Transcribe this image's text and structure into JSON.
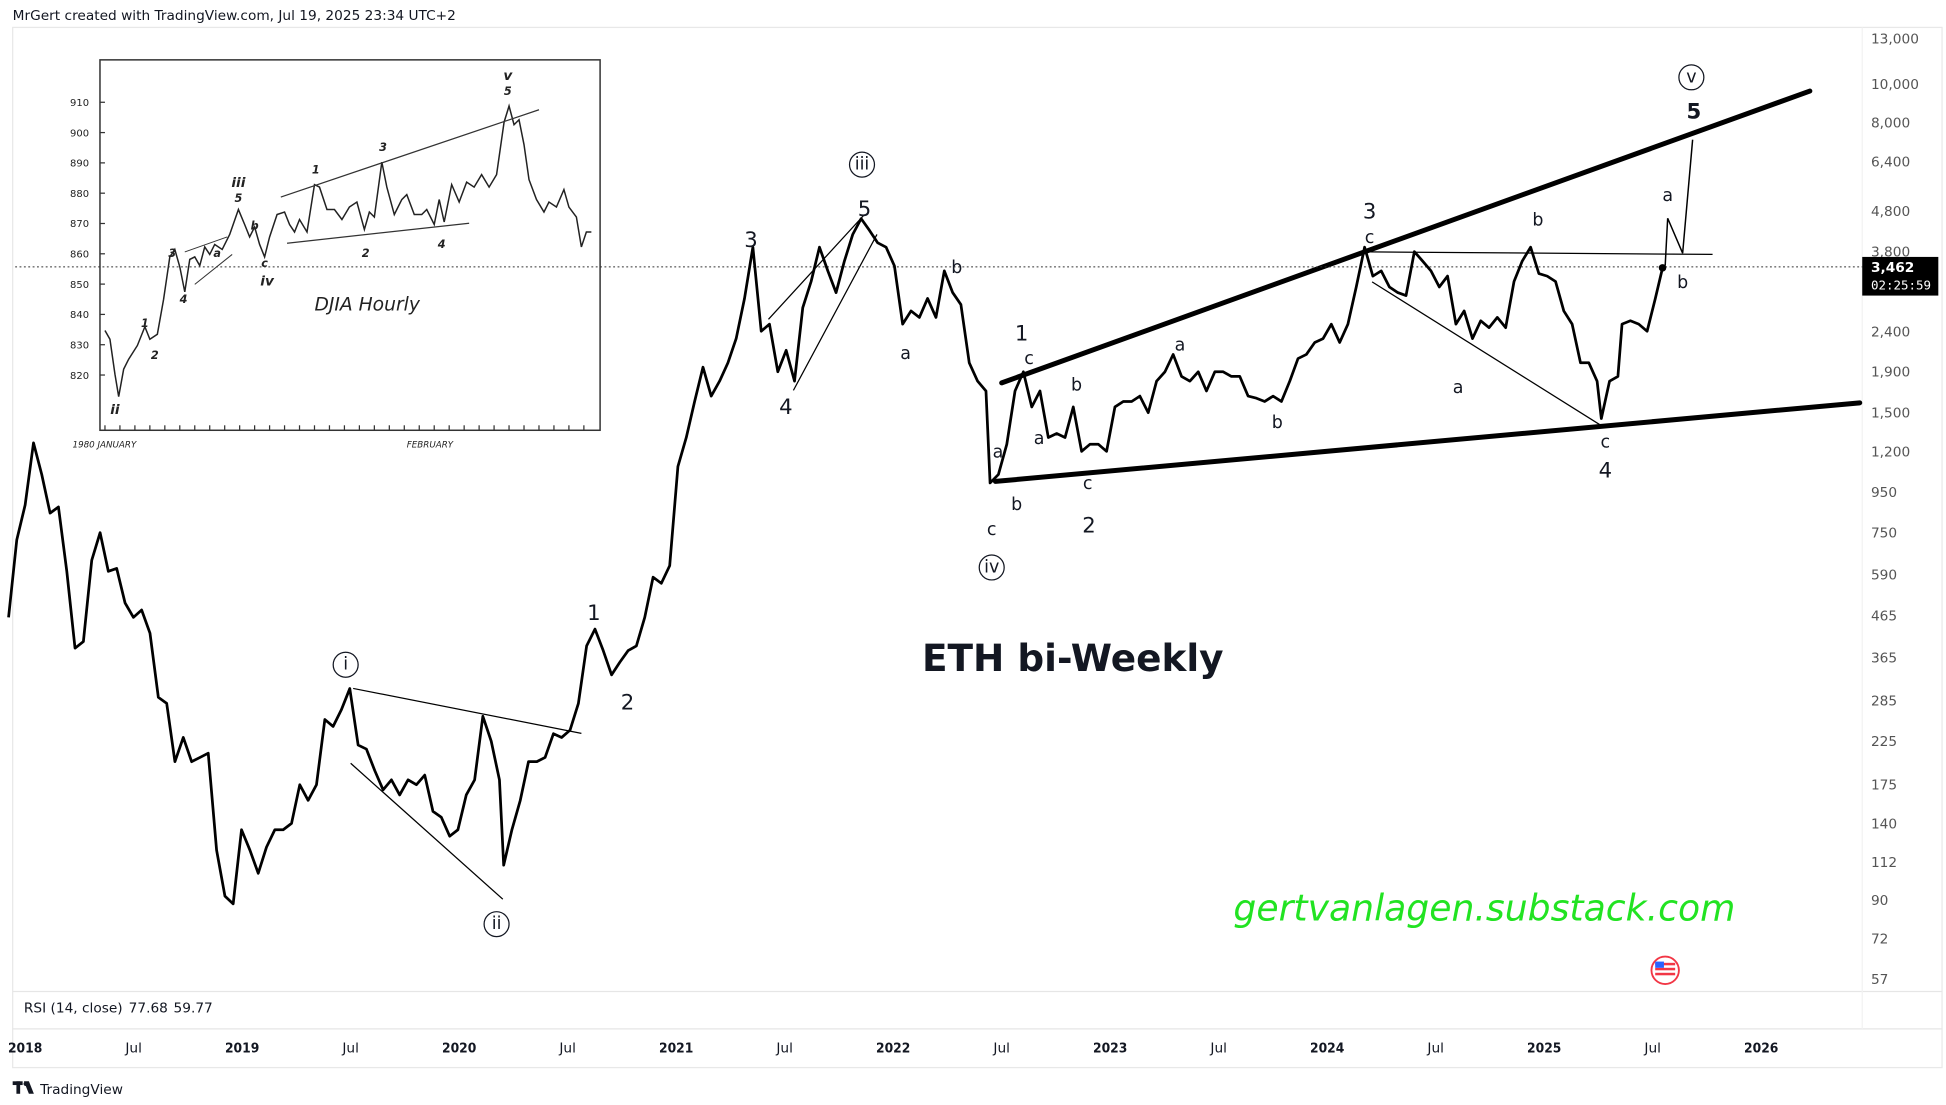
{
  "header": {
    "attribution": "MrGert created with TradingView.com, Jul 19, 2025 23:34 UTC+2"
  },
  "footer": {
    "brand": "TradingView",
    "logo": "tradingview-logo-icon"
  },
  "rsi": {
    "label": "RSI (14, close)",
    "value1": "77.68",
    "value2": "59.77",
    "color1": "#7e57c2",
    "color2": "#f5c400"
  },
  "price_badge": {
    "price": "3,462",
    "countdown": "02:25:59"
  },
  "watermark": {
    "title": "ETH bi-Weekly",
    "url": "gertvanlagen.substack.com",
    "url_color": "#22e322"
  },
  "flag_icon": "us-flag-icon",
  "inset": {
    "title": "DJIA Hourly",
    "y_ticks": [
      "910",
      "900",
      "890",
      "880",
      "870",
      "860",
      "850",
      "840",
      "830",
      "820"
    ],
    "x_labels": [
      "1980 JANUARY",
      "FEBRUARY"
    ],
    "labels": [
      "ii",
      "1",
      "2",
      "3",
      "4",
      "iii",
      "5",
      "a",
      "b",
      "c",
      "iv",
      "1",
      "3",
      "2",
      "4",
      "5",
      "v"
    ]
  },
  "chart_data": {
    "type": "line",
    "title": "ETH bi-Weekly",
    "y_scale": "log",
    "ylim": [
      57,
      13000
    ],
    "xlim": [
      "2017-12-01",
      "2026-06-30"
    ],
    "grid": false,
    "y_ticks": [
      "13,000",
      "10,000",
      "8,000",
      "6,400",
      "4,800",
      "3,800",
      "2,400",
      "1,900",
      "1,500",
      "1,200",
      "950",
      "750",
      "590",
      "465",
      "365",
      "285",
      "225",
      "175",
      "140",
      "112",
      "90",
      "72",
      "57"
    ],
    "x_ticks": [
      "2018",
      "Jul",
      "2019",
      "Jul",
      "2020",
      "Jul",
      "2021",
      "Jul",
      "2022",
      "Jul",
      "2023",
      "Jul",
      "2024",
      "Jul",
      "2025",
      "Jul",
      "2026"
    ],
    "last_price": 3462,
    "annotations": [
      "i",
      "ii",
      "iii",
      "iv",
      "v",
      "1",
      "2",
      "3",
      "4",
      "5",
      "b",
      "a",
      "1",
      "c",
      "b",
      "a",
      "a",
      "b",
      "c",
      "2",
      "c",
      "a",
      "b",
      "3",
      "c",
      "a",
      "b",
      "c",
      "4",
      "a",
      "b",
      "5"
    ],
    "series": [
      {
        "values": [
          [
            "2017-12-04",
            460
          ],
          [
            "2017-12-18",
            720
          ],
          [
            "2018-01-01",
            880
          ],
          [
            "2018-01-15",
            1260
          ],
          [
            "2018-01-29",
            1050
          ],
          [
            "2018-02-12",
            840
          ],
          [
            "2018-02-26",
            870
          ],
          [
            "2018-03-12",
            600
          ],
          [
            "2018-03-26",
            385
          ],
          [
            "2018-04-09",
            400
          ],
          [
            "2018-04-23",
            640
          ],
          [
            "2018-05-07",
            750
          ],
          [
            "2018-05-21",
            600
          ],
          [
            "2018-06-04",
            610
          ],
          [
            "2018-06-18",
            500
          ],
          [
            "2018-07-02",
            460
          ],
          [
            "2018-07-16",
            480
          ],
          [
            "2018-07-30",
            420
          ],
          [
            "2018-08-13",
            290
          ],
          [
            "2018-08-27",
            280
          ],
          [
            "2018-09-10",
            200
          ],
          [
            "2018-09-24",
            230
          ],
          [
            "2018-10-08",
            200
          ],
          [
            "2018-10-22",
            205
          ],
          [
            "2018-11-05",
            210
          ],
          [
            "2018-11-19",
            120
          ],
          [
            "2018-12-03",
            92
          ],
          [
            "2018-12-17",
            88
          ],
          [
            "2018-12-31",
            135
          ],
          [
            "2019-01-14",
            120
          ],
          [
            "2019-01-28",
            105
          ],
          [
            "2019-02-11",
            122
          ],
          [
            "2019-02-25",
            135
          ],
          [
            "2019-03-11",
            135
          ],
          [
            "2019-03-25",
            140
          ],
          [
            "2019-04-08",
            175
          ],
          [
            "2019-04-22",
            160
          ],
          [
            "2019-05-06",
            175
          ],
          [
            "2019-05-20",
            255
          ],
          [
            "2019-06-03",
            245
          ],
          [
            "2019-06-17",
            270
          ],
          [
            "2019-07-01",
            305
          ],
          [
            "2019-07-15",
            220
          ],
          [
            "2019-07-29",
            215
          ],
          [
            "2019-08-12",
            190
          ],
          [
            "2019-08-26",
            170
          ],
          [
            "2019-09-09",
            180
          ],
          [
            "2019-09-23",
            165
          ],
          [
            "2019-10-07",
            180
          ],
          [
            "2019-10-21",
            175
          ],
          [
            "2019-11-04",
            185
          ],
          [
            "2019-11-18",
            150
          ],
          [
            "2019-12-02",
            145
          ],
          [
            "2019-12-16",
            130
          ],
          [
            "2019-12-30",
            135
          ],
          [
            "2020-01-13",
            165
          ],
          [
            "2020-01-27",
            180
          ],
          [
            "2020-02-10",
            260
          ],
          [
            "2020-02-24",
            225
          ],
          [
            "2020-03-09",
            180
          ],
          [
            "2020-03-16",
            110
          ],
          [
            "2020-03-30",
            135
          ],
          [
            "2020-04-13",
            160
          ],
          [
            "2020-04-27",
            200
          ],
          [
            "2020-05-11",
            200
          ],
          [
            "2020-05-25",
            205
          ],
          [
            "2020-06-08",
            235
          ],
          [
            "2020-06-22",
            230
          ],
          [
            "2020-07-06",
            240
          ],
          [
            "2020-07-20",
            280
          ],
          [
            "2020-08-03",
            390
          ],
          [
            "2020-08-17",
            430
          ],
          [
            "2020-08-31",
            380
          ],
          [
            "2020-09-14",
            330
          ],
          [
            "2020-09-28",
            355
          ],
          [
            "2020-10-12",
            380
          ],
          [
            "2020-10-26",
            390
          ],
          [
            "2020-11-09",
            460
          ],
          [
            "2020-11-23",
            580
          ],
          [
            "2020-12-07",
            560
          ],
          [
            "2020-12-21",
            620
          ],
          [
            "2021-01-04",
            1100
          ],
          [
            "2021-01-18",
            1300
          ],
          [
            "2021-02-01",
            1600
          ],
          [
            "2021-02-15",
            1950
          ],
          [
            "2021-03-01",
            1650
          ],
          [
            "2021-03-15",
            1800
          ],
          [
            "2021-03-29",
            2000
          ],
          [
            "2021-04-12",
            2300
          ],
          [
            "2021-04-26",
            2900
          ],
          [
            "2021-05-10",
            3900
          ],
          [
            "2021-05-24",
            2400
          ],
          [
            "2021-06-07",
            2500
          ],
          [
            "2021-06-21",
            1900
          ],
          [
            "2021-07-05",
            2150
          ],
          [
            "2021-07-19",
            1800
          ],
          [
            "2021-08-02",
            2750
          ],
          [
            "2021-08-16",
            3200
          ],
          [
            "2021-08-30",
            3900
          ],
          [
            "2021-09-13",
            3400
          ],
          [
            "2021-09-27",
            3000
          ],
          [
            "2021-10-11",
            3600
          ],
          [
            "2021-10-25",
            4200
          ],
          [
            "2021-11-08",
            4600
          ],
          [
            "2021-11-22",
            4300
          ],
          [
            "2021-12-06",
            4000
          ],
          [
            "2021-12-20",
            3900
          ],
          [
            "2022-01-03",
            3500
          ],
          [
            "2022-01-17",
            2500
          ],
          [
            "2022-01-31",
            2700
          ],
          [
            "2022-02-14",
            2600
          ],
          [
            "2022-02-28",
            2900
          ],
          [
            "2022-03-14",
            2600
          ],
          [
            "2022-03-28",
            3400
          ],
          [
            "2022-04-11",
            3000
          ],
          [
            "2022-04-25",
            2800
          ],
          [
            "2022-05-09",
            2000
          ],
          [
            "2022-05-23",
            1800
          ],
          [
            "2022-06-06",
            1700
          ],
          [
            "2022-06-13",
            1000
          ],
          [
            "2022-06-27",
            1050
          ],
          [
            "2022-07-11",
            1250
          ],
          [
            "2022-07-25",
            1700
          ],
          [
            "2022-08-08",
            1900
          ],
          [
            "2022-08-22",
            1550
          ],
          [
            "2022-09-05",
            1700
          ],
          [
            "2022-09-19",
            1300
          ],
          [
            "2022-10-03",
            1330
          ],
          [
            "2022-10-17",
            1300
          ],
          [
            "2022-10-31",
            1550
          ],
          [
            "2022-11-14",
            1200
          ],
          [
            "2022-11-28",
            1250
          ],
          [
            "2022-12-12",
            1250
          ],
          [
            "2022-12-26",
            1200
          ],
          [
            "2023-01-09",
            1550
          ],
          [
            "2023-01-23",
            1600
          ],
          [
            "2023-02-06",
            1600
          ],
          [
            "2023-02-20",
            1650
          ],
          [
            "2023-03-06",
            1500
          ],
          [
            "2023-03-20",
            1800
          ],
          [
            "2023-04-03",
            1900
          ],
          [
            "2023-04-17",
            2100
          ],
          [
            "2023-05-01",
            1850
          ],
          [
            "2023-05-15",
            1800
          ],
          [
            "2023-05-29",
            1900
          ],
          [
            "2023-06-12",
            1700
          ],
          [
            "2023-06-26",
            1900
          ],
          [
            "2023-07-10",
            1900
          ],
          [
            "2023-07-24",
            1850
          ],
          [
            "2023-08-07",
            1850
          ],
          [
            "2023-08-21",
            1650
          ],
          [
            "2023-09-04",
            1630
          ],
          [
            "2023-09-18",
            1600
          ],
          [
            "2023-10-02",
            1650
          ],
          [
            "2023-10-16",
            1600
          ],
          [
            "2023-10-30",
            1800
          ],
          [
            "2023-11-13",
            2050
          ],
          [
            "2023-11-27",
            2100
          ],
          [
            "2023-12-11",
            2250
          ],
          [
            "2023-12-25",
            2300
          ],
          [
            "2024-01-08",
            2500
          ],
          [
            "2024-01-22",
            2250
          ],
          [
            "2024-02-05",
            2500
          ],
          [
            "2024-02-19",
            3100
          ],
          [
            "2024-03-04",
            3900
          ],
          [
            "2024-03-18",
            3300
          ],
          [
            "2024-04-01",
            3400
          ],
          [
            "2024-04-15",
            3100
          ],
          [
            "2024-04-29",
            3000
          ],
          [
            "2024-05-13",
            2950
          ],
          [
            "2024-05-27",
            3800
          ],
          [
            "2024-06-10",
            3600
          ],
          [
            "2024-06-24",
            3400
          ],
          [
            "2024-07-08",
            3100
          ],
          [
            "2024-07-22",
            3300
          ],
          [
            "2024-08-05",
            2500
          ],
          [
            "2024-08-19",
            2700
          ],
          [
            "2024-09-02",
            2300
          ],
          [
            "2024-09-16",
            2550
          ],
          [
            "2024-09-30",
            2450
          ],
          [
            "2024-10-14",
            2600
          ],
          [
            "2024-10-28",
            2450
          ],
          [
            "2024-11-11",
            3200
          ],
          [
            "2024-11-25",
            3600
          ],
          [
            "2024-12-09",
            3900
          ],
          [
            "2024-12-23",
            3350
          ],
          [
            "2025-01-06",
            3300
          ],
          [
            "2025-01-20",
            3200
          ],
          [
            "2025-02-03",
            2700
          ],
          [
            "2025-02-17",
            2500
          ],
          [
            "2025-03-03",
            2000
          ],
          [
            "2025-03-17",
            2000
          ],
          [
            "2025-03-31",
            1800
          ],
          [
            "2025-04-07",
            1450
          ],
          [
            "2025-04-21",
            1800
          ],
          [
            "2025-05-05",
            1850
          ],
          [
            "2025-05-12",
            2500
          ],
          [
            "2025-05-26",
            2550
          ],
          [
            "2025-06-09",
            2500
          ],
          [
            "2025-06-23",
            2400
          ],
          [
            "2025-07-07",
            2900
          ],
          [
            "2025-07-19",
            3462
          ]
        ]
      }
    ]
  }
}
